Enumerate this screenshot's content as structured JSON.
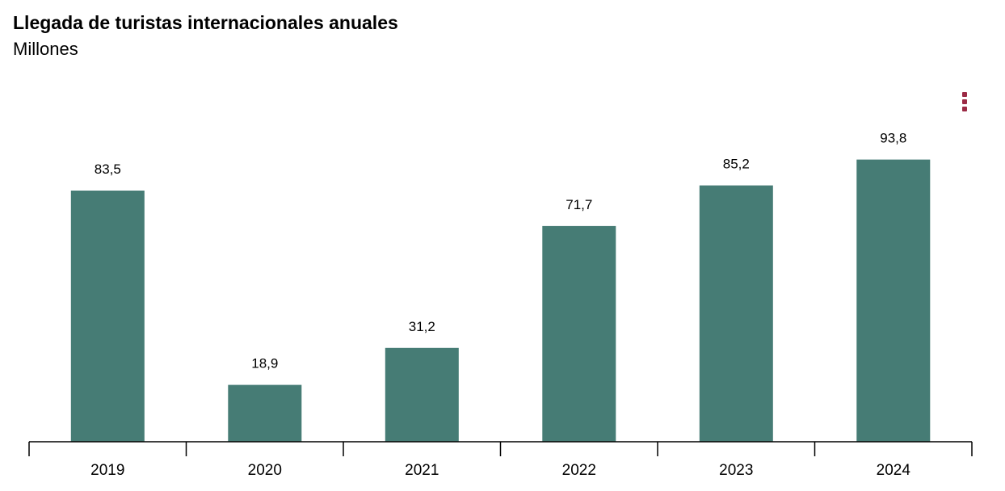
{
  "chart_data": {
    "type": "bar",
    "title": "Llegada de turistas internacionales anuales",
    "subtitle": "Millones",
    "categories": [
      "2019",
      "2020",
      "2021",
      "2022",
      "2023",
      "2024"
    ],
    "values": [
      83.5,
      18.9,
      31.2,
      71.7,
      85.2,
      93.8
    ],
    "value_labels": [
      "83,5",
      "18,9",
      "31,2",
      "71,7",
      "85,2",
      "93,8"
    ],
    "ylim": [
      0,
      100
    ],
    "grid": false,
    "legend": "none",
    "bar_color": "#467c75"
  },
  "menu": {
    "icon": "more-vertical-icon",
    "color": "#9b2a45"
  }
}
